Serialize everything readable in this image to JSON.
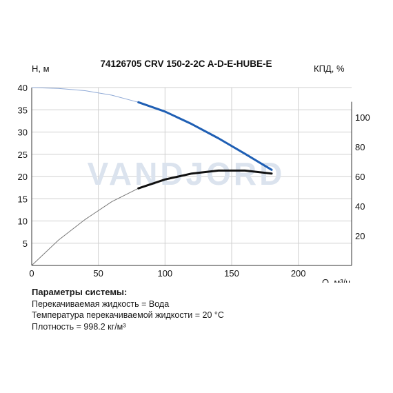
{
  "chart_data": {
    "type": "line",
    "title": "74126705 CRV 150-2-2C A-D-E-HUBE-E",
    "ylabel_left": "H, м",
    "ylabel_right": "КПД, %",
    "xlabel": "Q, м³/ч",
    "watermark": "VANDJORD",
    "xlim": [
      0,
      240
    ],
    "ylim_left": [
      0,
      40
    ],
    "ylim_right": [
      0,
      120
    ],
    "x_ticks": [
      "0",
      "50",
      "100",
      "150",
      "200"
    ],
    "y_left_ticks": [
      "5",
      "10",
      "15",
      "20",
      "25",
      "30",
      "35",
      "40"
    ],
    "y_right_ticks": [
      "20",
      "40",
      "60",
      "80",
      "100"
    ],
    "grid": true,
    "series": [
      {
        "axis": "left",
        "color": "#1f5fb4",
        "x": [
          0,
          20,
          40,
          60,
          80,
          100,
          120,
          140,
          160,
          180
        ],
        "y": [
          40.0,
          39.8,
          39.3,
          38.3,
          36.7,
          34.6,
          31.8,
          28.6,
          25.1,
          21.5
        ]
      },
      {
        "axis": "right",
        "color": "#111111",
        "x": [
          0,
          20,
          40,
          60,
          80,
          100,
          120,
          140,
          160,
          180
        ],
        "y": [
          0,
          17,
          31,
          43,
          52,
          58,
          62,
          64,
          64,
          62
        ]
      }
    ]
  },
  "params": {
    "title": "Параметры системы:",
    "lines": [
      "Перекачиваемая жидкость = Вода",
      "Температура перекачиваемой жидкости = 20 °C",
      "Плотность = 998.2 кг/м³"
    ]
  }
}
